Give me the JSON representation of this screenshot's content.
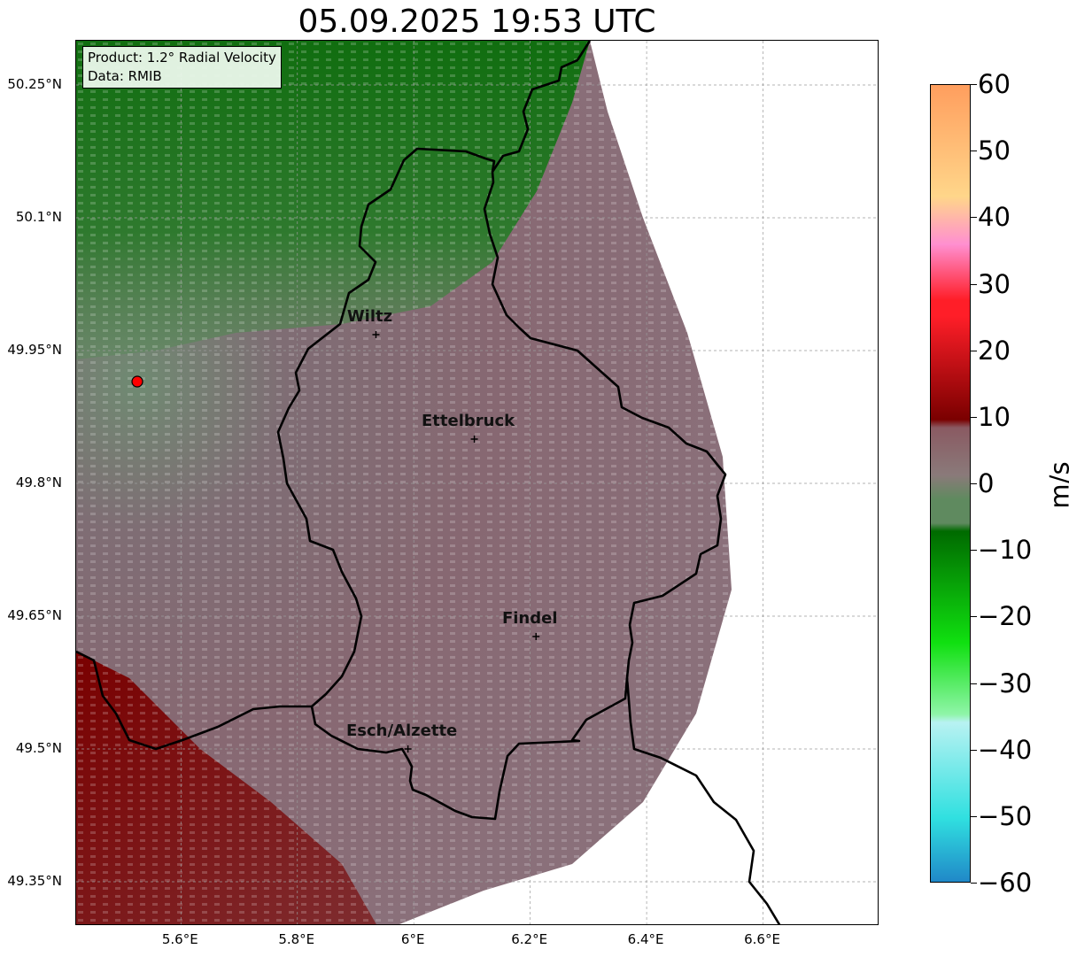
{
  "title": "05.09.2025 19:53 UTC",
  "info": {
    "product": "Product: 1.2° Radial Velocity",
    "data": "Data: RMIB"
  },
  "map": {
    "lon_range": [
      5.42,
      6.8
    ],
    "lat_range": [
      49.3,
      50.3
    ],
    "lat_ticks": [
      {
        "value": 50.25,
        "label": "50.25°N"
      },
      {
        "value": 50.1,
        "label": "50.1°N"
      },
      {
        "value": 49.95,
        "label": "49.95°N"
      },
      {
        "value": 49.8,
        "label": "49.8°N"
      },
      {
        "value": 49.65,
        "label": "49.65°N"
      },
      {
        "value": 49.5,
        "label": "49.5°N"
      },
      {
        "value": 49.35,
        "label": "49.35°N"
      }
    ],
    "lon_ticks": [
      {
        "value": 5.6,
        "label": "5.6°E"
      },
      {
        "value": 5.8,
        "label": "5.8°E"
      },
      {
        "value": 6.0,
        "label": "6°E"
      },
      {
        "value": 6.2,
        "label": "6.2°E"
      },
      {
        "value": 6.4,
        "label": "6.4°E"
      },
      {
        "value": 6.6,
        "label": "6.6°E"
      }
    ],
    "grid": true,
    "radar_site": {
      "lon": 5.525,
      "lat": 49.915
    },
    "cities": [
      {
        "name": "Wiltz",
        "lon": 5.935,
        "lat": 49.968
      },
      {
        "name": "Ettelbruck",
        "lon": 6.104,
        "lat": 49.85
      },
      {
        "name": "Findel",
        "lon": 6.21,
        "lat": 49.627
      },
      {
        "name": "Esch/Alzette",
        "lon": 5.99,
        "lat": 49.5
      }
    ]
  },
  "colorbar": {
    "label": "m/s",
    "min": -60,
    "max": 60,
    "ticks": [
      {
        "value": 60,
        "label": "60"
      },
      {
        "value": 50,
        "label": "50"
      },
      {
        "value": 40,
        "label": "40"
      },
      {
        "value": 30,
        "label": "30"
      },
      {
        "value": 20,
        "label": "20"
      },
      {
        "value": 10,
        "label": "10"
      },
      {
        "value": 0,
        "label": "0"
      },
      {
        "value": -10,
        "label": "−10"
      },
      {
        "value": -20,
        "label": "−20"
      },
      {
        "value": -30,
        "label": "−30"
      },
      {
        "value": -40,
        "label": "−40"
      },
      {
        "value": -50,
        "label": "−50"
      },
      {
        "value": -60,
        "label": "−60"
      }
    ],
    "colors": {
      "orange": "#ff9e5e",
      "light_orange": "#ffd68a",
      "pink": "#ff8fd0",
      "red": "#ff1e28",
      "dark_red": "#7a0000",
      "muted_red": "#8a5a62",
      "gray": "#8a7a7a",
      "muted_green": "#5f8a5f",
      "dark_green": "#006a00",
      "green": "#10e010",
      "light_green": "#8ff5a8",
      "light_cyan": "#b8f2f2",
      "cyan": "#30e0e0",
      "blue": "#2088c8"
    }
  }
}
